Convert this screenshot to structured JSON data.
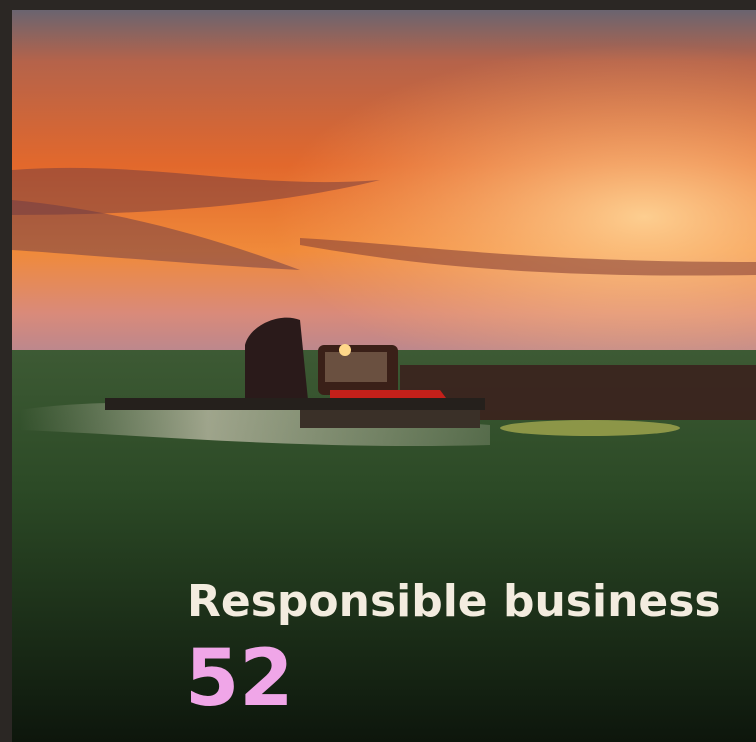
{
  "title": "Responsible business",
  "page_number": "52"
}
